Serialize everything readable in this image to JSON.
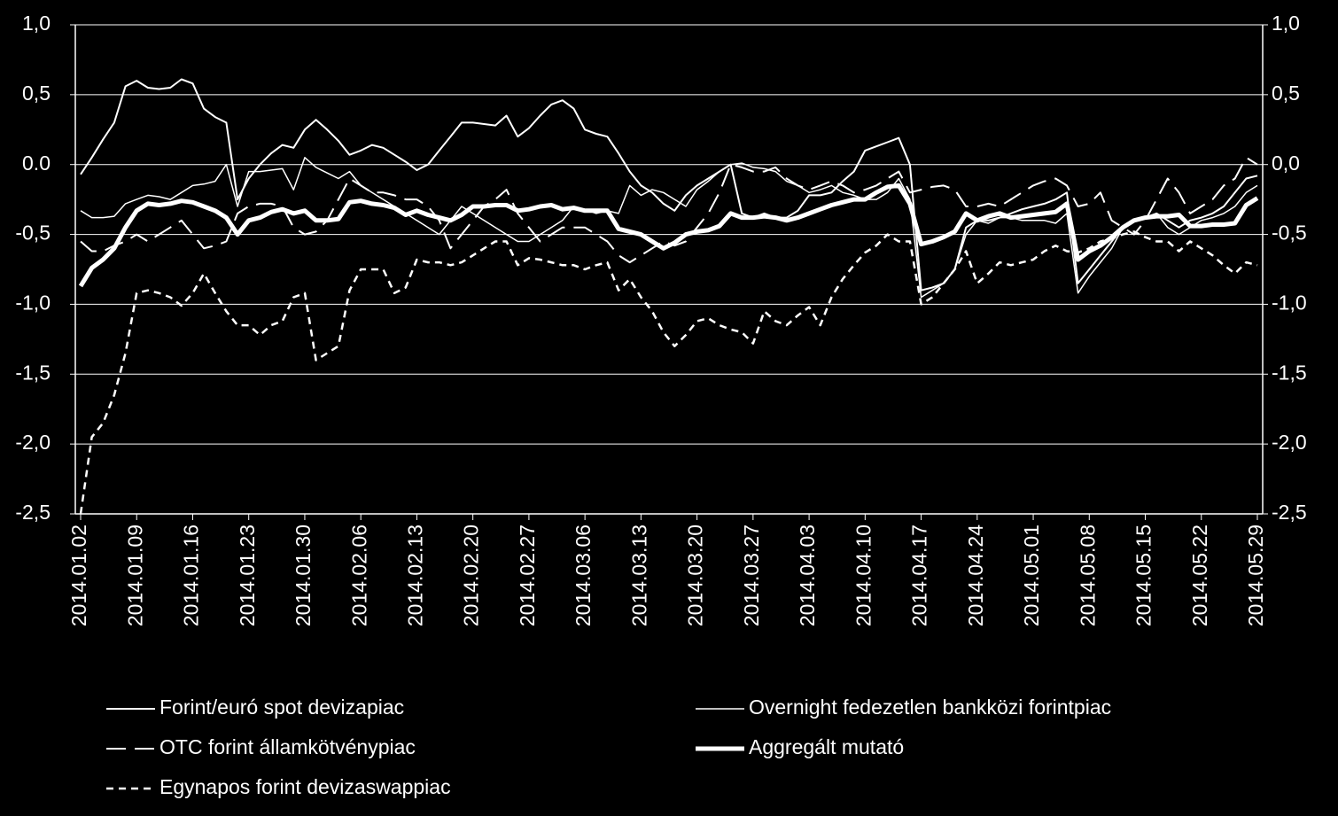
{
  "chart_data": {
    "type": "line",
    "categories": [
      "2014.01.02",
      null,
      null,
      null,
      null,
      "2014.01.09",
      null,
      null,
      null,
      null,
      "2014.01.16",
      null,
      null,
      null,
      null,
      "2014.01.23",
      null,
      null,
      null,
      null,
      "2014.01.30",
      null,
      null,
      null,
      null,
      "2014.02.06",
      null,
      null,
      null,
      null,
      "2014.02.13",
      null,
      null,
      null,
      null,
      "2014.02.20",
      null,
      null,
      null,
      null,
      "2014.02.27",
      null,
      null,
      null,
      null,
      "2014.03.06",
      null,
      null,
      null,
      null,
      "2014.03.13",
      null,
      null,
      null,
      null,
      "2014.03.20",
      null,
      null,
      null,
      null,
      "2014.03.27",
      null,
      null,
      null,
      null,
      "2014.04.03",
      null,
      null,
      null,
      null,
      "2014.04.10",
      null,
      null,
      null,
      null,
      "2014.04.17",
      null,
      null,
      null,
      null,
      "2014.04.24",
      null,
      null,
      null,
      null,
      "2014.05.01",
      null,
      null,
      null,
      null,
      "2014.05.08",
      null,
      null,
      null,
      null,
      "2014.05.15",
      null,
      null,
      null,
      null,
      "2014.05.22",
      null,
      null,
      null,
      null,
      "2014.05.29"
    ],
    "series": [
      {
        "name": "Forint/euró spot devizapiac",
        "color": "#ffffff",
        "style": "solid",
        "width": 2,
        "values": [
          -0.07,
          0.05,
          0.18,
          0.3,
          0.56,
          0.6,
          0.55,
          0.54,
          0.55,
          0.61,
          0.58,
          0.4,
          0.34,
          0.3,
          -0.25,
          -0.1,
          0.0,
          0.08,
          0.14,
          0.12,
          0.25,
          0.32,
          0.25,
          0.17,
          0.07,
          0.1,
          0.14,
          0.12,
          0.07,
          0.02,
          -0.04,
          0.0,
          0.1,
          0.2,
          0.3,
          0.3,
          0.29,
          0.28,
          0.35,
          0.2,
          0.26,
          0.35,
          0.43,
          0.46,
          0.4,
          0.25,
          0.22,
          0.2,
          0.08,
          -0.05,
          -0.15,
          -0.2,
          -0.28,
          -0.33,
          -0.22,
          -0.15,
          -0.1,
          -0.05,
          0.0,
          -0.35,
          -0.38,
          -0.35,
          -0.38,
          -0.38,
          -0.33,
          -0.22,
          -0.22,
          -0.2,
          -0.12,
          -0.05,
          0.1,
          0.13,
          0.16,
          0.19,
          0.0,
          -0.9,
          -0.88,
          -0.85,
          -0.75,
          -0.45,
          -0.4,
          -0.4,
          -0.38,
          -0.35,
          -0.32,
          -0.3,
          -0.28,
          -0.25,
          -0.2,
          -0.85,
          -0.75,
          -0.65,
          -0.55,
          -0.45,
          -0.4,
          -0.38,
          -0.35,
          -0.4,
          -0.45,
          -0.4,
          -0.38,
          -0.35,
          -0.3,
          -0.2,
          -0.1,
          -0.08
        ]
      },
      {
        "name": "Overnight fedezetlen bankközi forintpiac",
        "color": "#ffffff",
        "style": "solid",
        "width": 1.5,
        "values": [
          -0.33,
          -0.38,
          -0.38,
          -0.37,
          -0.28,
          -0.25,
          -0.22,
          -0.23,
          -0.25,
          -0.2,
          -0.15,
          -0.14,
          -0.12,
          0.0,
          -0.3,
          -0.05,
          -0.05,
          -0.04,
          -0.03,
          -0.18,
          0.05,
          -0.02,
          -0.06,
          -0.1,
          -0.05,
          -0.15,
          -0.2,
          -0.25,
          -0.3,
          -0.35,
          -0.4,
          -0.45,
          -0.5,
          -0.4,
          -0.3,
          -0.35,
          -0.4,
          -0.45,
          -0.5,
          -0.55,
          -0.55,
          -0.5,
          -0.45,
          -0.4,
          -0.3,
          -0.32,
          -0.35,
          -0.33,
          -0.35,
          -0.15,
          -0.22,
          -0.18,
          -0.2,
          -0.25,
          -0.3,
          -0.18,
          -0.12,
          -0.05,
          0.0,
          0.01,
          -0.02,
          -0.03,
          -0.05,
          -0.12,
          -0.15,
          -0.2,
          -0.18,
          -0.15,
          -0.2,
          -0.22,
          -0.25,
          -0.25,
          -0.2,
          -0.1,
          -0.25,
          -0.95,
          -0.9,
          -0.85,
          -0.75,
          -0.5,
          -0.4,
          -0.42,
          -0.38,
          -0.38,
          -0.4,
          -0.4,
          -0.4,
          -0.42,
          -0.35,
          -0.92,
          -0.8,
          -0.7,
          -0.6,
          -0.45,
          -0.4,
          -0.38,
          -0.35,
          -0.45,
          -0.5,
          -0.45,
          -0.4,
          -0.38,
          -0.35,
          -0.3,
          -0.2,
          -0.15
        ]
      },
      {
        "name": "OTC forint államkötvénypiac",
        "color": "#ffffff",
        "style": "dashed",
        "width": 2,
        "values": [
          -0.55,
          -0.62,
          -0.62,
          -0.58,
          -0.55,
          -0.5,
          -0.55,
          -0.5,
          -0.45,
          -0.4,
          -0.5,
          -0.6,
          -0.58,
          -0.55,
          -0.35,
          -0.3,
          -0.28,
          -0.28,
          -0.3,
          -0.45,
          -0.5,
          -0.48,
          -0.4,
          -0.25,
          -0.1,
          -0.15,
          -0.2,
          -0.2,
          -0.22,
          -0.25,
          -0.25,
          -0.3,
          -0.4,
          -0.6,
          -0.5,
          -0.4,
          -0.3,
          -0.25,
          -0.18,
          -0.35,
          -0.45,
          -0.55,
          -0.5,
          -0.45,
          -0.45,
          -0.45,
          -0.5,
          -0.55,
          -0.65,
          -0.7,
          -0.65,
          -0.6,
          -0.55,
          -0.58,
          -0.55,
          -0.45,
          -0.35,
          -0.2,
          0.0,
          -0.02,
          -0.05,
          -0.05,
          -0.02,
          -0.1,
          -0.15,
          -0.18,
          -0.15,
          -0.12,
          -0.15,
          -0.2,
          -0.18,
          -0.15,
          -0.1,
          -0.05,
          -0.2,
          -0.18,
          -0.16,
          -0.15,
          -0.18,
          -0.3,
          -0.3,
          -0.28,
          -0.3,
          -0.25,
          -0.2,
          -0.15,
          -0.12,
          -0.1,
          -0.15,
          -0.3,
          -0.28,
          -0.2,
          -0.4,
          -0.45,
          -0.5,
          -0.4,
          -0.25,
          -0.1,
          -0.2,
          -0.35,
          -0.3,
          -0.25,
          -0.15,
          -0.1,
          0.05,
          0.0
        ]
      },
      {
        "name": "Aggregált mutató",
        "color": "#ffffff",
        "style": "solid",
        "width": 5,
        "values": [
          -0.87,
          -0.74,
          -0.68,
          -0.6,
          -0.45,
          -0.33,
          -0.28,
          -0.29,
          -0.28,
          -0.26,
          -0.27,
          -0.3,
          -0.33,
          -0.38,
          -0.5,
          -0.4,
          -0.38,
          -0.34,
          -0.32,
          -0.35,
          -0.33,
          -0.4,
          -0.4,
          -0.39,
          -0.27,
          -0.26,
          -0.28,
          -0.29,
          -0.31,
          -0.36,
          -0.33,
          -0.36,
          -0.38,
          -0.4,
          -0.36,
          -0.3,
          -0.3,
          -0.29,
          -0.29,
          -0.33,
          -0.32,
          -0.3,
          -0.29,
          -0.32,
          -0.31,
          -0.33,
          -0.33,
          -0.33,
          -0.46,
          -0.48,
          -0.5,
          -0.55,
          -0.6,
          -0.56,
          -0.5,
          -0.48,
          -0.47,
          -0.44,
          -0.35,
          -0.38,
          -0.38,
          -0.37,
          -0.38,
          -0.4,
          -0.38,
          -0.35,
          -0.32,
          -0.29,
          -0.27,
          -0.25,
          -0.25,
          -0.2,
          -0.16,
          -0.15,
          -0.28,
          -0.57,
          -0.55,
          -0.52,
          -0.48,
          -0.35,
          -0.4,
          -0.37,
          -0.35,
          -0.38,
          -0.37,
          -0.36,
          -0.35,
          -0.34,
          -0.28,
          -0.68,
          -0.62,
          -0.58,
          -0.52,
          -0.45,
          -0.4,
          -0.38,
          -0.37,
          -0.37,
          -0.36,
          -0.44,
          -0.44,
          -0.43,
          -0.43,
          -0.42,
          -0.29,
          -0.24
        ]
      },
      {
        "name": "Egynapos forint devizaswappiac",
        "color": "#ffffff",
        "style": "short-dashed",
        "width": 2.5,
        "values": [
          -2.5,
          -1.95,
          -1.85,
          -1.65,
          -1.35,
          -0.92,
          -0.9,
          -0.92,
          -0.95,
          -1.01,
          -0.92,
          -0.78,
          -0.92,
          -1.05,
          -1.15,
          -1.15,
          -1.22,
          -1.15,
          -1.12,
          -0.95,
          -0.92,
          -1.4,
          -1.35,
          -1.3,
          -0.9,
          -0.75,
          -0.75,
          -0.75,
          -0.92,
          -0.88,
          -0.68,
          -0.7,
          -0.7,
          -0.72,
          -0.7,
          -0.65,
          -0.6,
          -0.55,
          -0.55,
          -0.72,
          -0.67,
          -0.68,
          -0.7,
          -0.72,
          -0.72,
          -0.75,
          -0.72,
          -0.7,
          -0.9,
          -0.82,
          -0.95,
          -1.05,
          -1.2,
          -1.3,
          -1.22,
          -1.12,
          -1.1,
          -1.15,
          -1.18,
          -1.2,
          -1.28,
          -1.05,
          -1.12,
          -1.15,
          -1.08,
          -1.02,
          -1.15,
          -0.95,
          -0.82,
          -0.72,
          -0.63,
          -0.58,
          -0.5,
          -0.55,
          -0.55,
          -1.0,
          -0.95,
          -0.85,
          -0.75,
          -0.62,
          -0.85,
          -0.78,
          -0.7,
          -0.72,
          -0.7,
          -0.68,
          -0.62,
          -0.58,
          -0.62,
          -0.63,
          -0.6,
          -0.55,
          -0.53,
          -0.5,
          -0.48,
          -0.52,
          -0.55,
          -0.55,
          -0.62,
          -0.55,
          -0.6,
          -0.65,
          -0.72,
          -0.78,
          -0.7,
          -0.72
        ]
      }
    ],
    "ylim": [
      -2.5,
      1.0
    ],
    "yticks": [
      {
        "value": -2.5,
        "label": "-2,5"
      },
      {
        "value": -2.0,
        "label": "-2,0"
      },
      {
        "value": -1.5,
        "label": "-1,5"
      },
      {
        "value": -1.0,
        "label": "-1,0"
      },
      {
        "value": -0.5,
        "label": "-0,5"
      },
      {
        "value": 0.0,
        "label": "0.0"
      },
      {
        "value": 0.5,
        "label": "0,5"
      },
      {
        "value": 1.0,
        "label": "1,0"
      }
    ],
    "y2lim": [
      -2.5,
      1.0
    ],
    "y2ticks": [
      {
        "value": -2.5,
        "label": "-2,5"
      },
      {
        "value": -2.0,
        "label": "-2,0"
      },
      {
        "value": -1.5,
        "label": "-1,5"
      },
      {
        "value": -1.0,
        "label": "-1,0"
      },
      {
        "value": -0.5,
        "label": "-0,5"
      },
      {
        "value": 0.0,
        "label": "0,0"
      },
      {
        "value": 0.5,
        "label": "0,5"
      },
      {
        "value": 1.0,
        "label": "1,0"
      }
    ],
    "grid": true,
    "background": "#000000"
  }
}
